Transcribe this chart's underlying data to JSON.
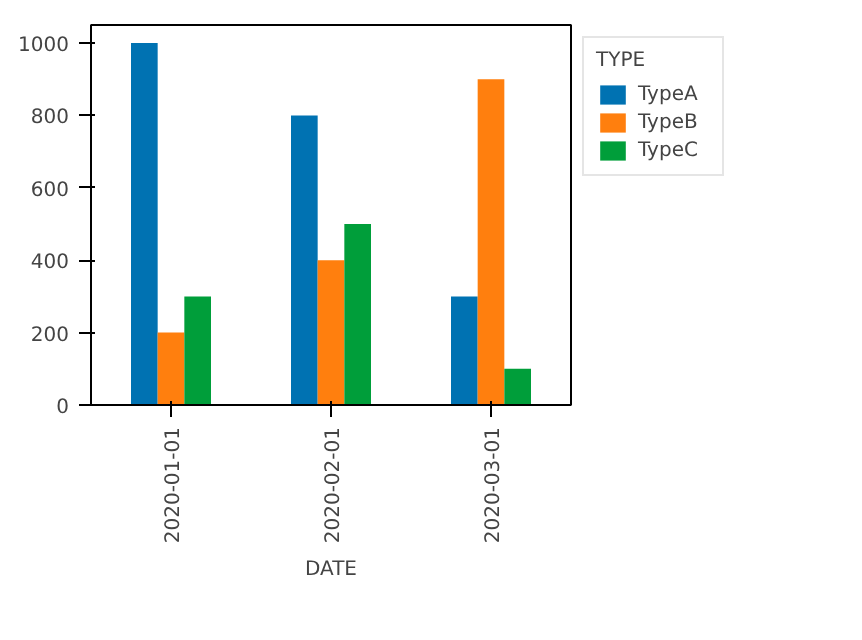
{
  "chart_data": {
    "type": "bar",
    "xlabel": "DATE",
    "legend_title": "TYPE",
    "categories": [
      "2020-01-01",
      "2020-02-01",
      "2020-03-01"
    ],
    "series": [
      {
        "name": "TypeA",
        "color": "#0072b2",
        "values": [
          1000,
          800,
          300
        ]
      },
      {
        "name": "TypeB",
        "color": "#ff7f0e",
        "values": [
          200,
          400,
          900
        ]
      },
      {
        "name": "TypeC",
        "color": "#009e3a",
        "values": [
          300,
          500,
          100
        ]
      }
    ],
    "ylim": [
      0,
      1050
    ],
    "yticks": [
      0,
      200,
      400,
      600,
      800,
      1000
    ],
    "grid": false,
    "legend": "right"
  }
}
